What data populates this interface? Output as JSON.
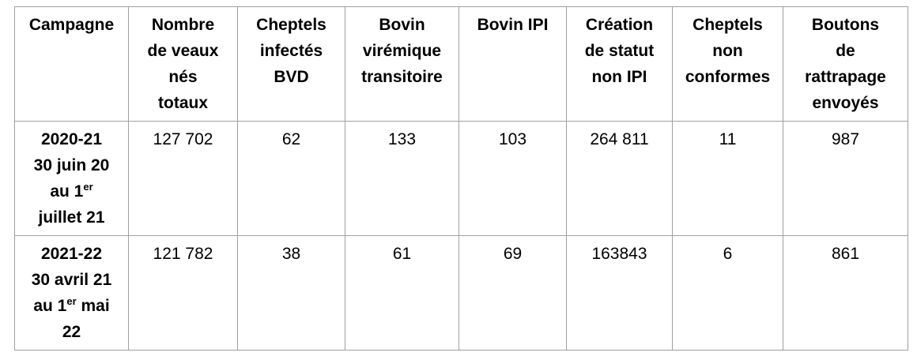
{
  "table": {
    "headers": [
      [
        "Campagne"
      ],
      [
        "Nombre",
        "de veaux",
        "nés",
        "totaux"
      ],
      [
        "Cheptels",
        "infectés",
        "BVD"
      ],
      [
        "Bovin",
        "virémique",
        "transitoire"
      ],
      [
        "Bovin IPI"
      ],
      [
        "Création",
        "de statut",
        "non IPI"
      ],
      [
        "Cheptels",
        "non",
        "conformes"
      ],
      [
        "Boutons",
        "de",
        "rattrapage",
        "envoyés"
      ]
    ],
    "rows": [
      {
        "campaign": [
          "2020-21",
          "30 juin 20",
          "au 1",
          "er",
          "juillet 21"
        ],
        "cells": [
          "127 702",
          "62",
          "133",
          "103",
          "264 811",
          "11",
          "987"
        ]
      },
      {
        "campaign": [
          "2021-22",
          "30 avril 21",
          "au 1",
          "er",
          " mai",
          "22"
        ],
        "cells": [
          "121 782",
          "38",
          "61",
          "69",
          "163843",
          "6",
          "861"
        ]
      }
    ]
  }
}
